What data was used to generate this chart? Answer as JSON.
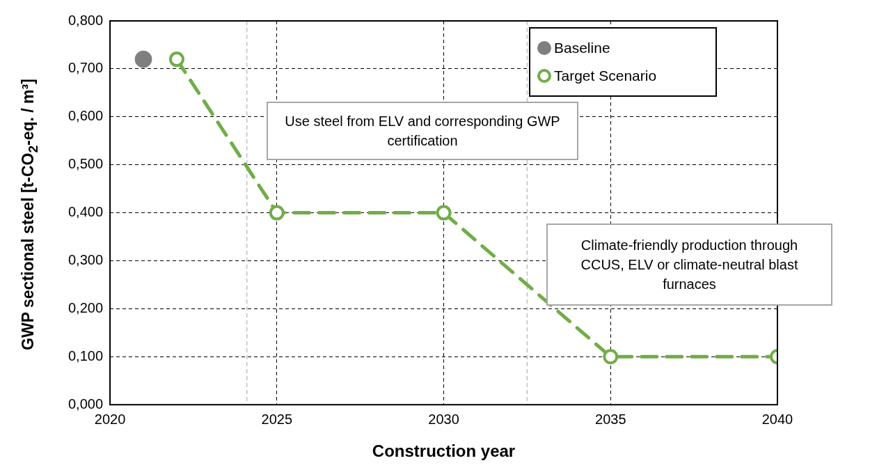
{
  "chart_data": {
    "type": "line",
    "xlabel": "Construction year",
    "ylabel": "GWP sectional steel [t-CO$_{2}$-eq. / m³]",
    "xlim": [
      2020,
      2040
    ],
    "xticks": [
      2020,
      2025,
      2030,
      2035,
      2040
    ],
    "ylim": [
      0,
      0.8
    ],
    "yticks": [
      {
        "value": 0,
        "label": "0,000"
      },
      {
        "value": 0.1,
        "label": "0,100"
      },
      {
        "value": 0.2,
        "label": "0,200"
      },
      {
        "value": 0.3,
        "label": "0,300"
      },
      {
        "value": 0.4,
        "label": "0,400"
      },
      {
        "value": 0.5,
        "label": "0,500"
      },
      {
        "value": 0.6,
        "label": "0,600"
      },
      {
        "value": 0.7,
        "label": "0,700"
      },
      {
        "value": 0.8,
        "label": "0,800"
      }
    ],
    "grid": true,
    "legend": "top right",
    "marker": "circle",
    "series": [
      {
        "name": "Baseline",
        "color": "#7f7f7f",
        "type": "scatter",
        "x": [
          2021
        ],
        "values": [
          0.72
        ]
      },
      {
        "name": "Target Scenario",
        "color": "#70ad47",
        "line_style": "dashed",
        "x": [
          2022,
          2025,
          2030,
          2035,
          2040
        ],
        "values": [
          0.72,
          0.4,
          0.4,
          0.1,
          0.1
        ]
      }
    ],
    "ref_lines": [
      {
        "axis": "x",
        "value": 2024.1,
        "color": "#bfbfbf",
        "line_style": "dashed"
      },
      {
        "axis": "x",
        "value": 2032.5,
        "color": "#bfbfbf",
        "line_style": "dashed"
      }
    ],
    "annotations": [
      "Use steel from ELV and corresponding GWP certification",
      "Climate-friendly production through CCUS, ELV or climate-neutral blast furnaces"
    ]
  }
}
